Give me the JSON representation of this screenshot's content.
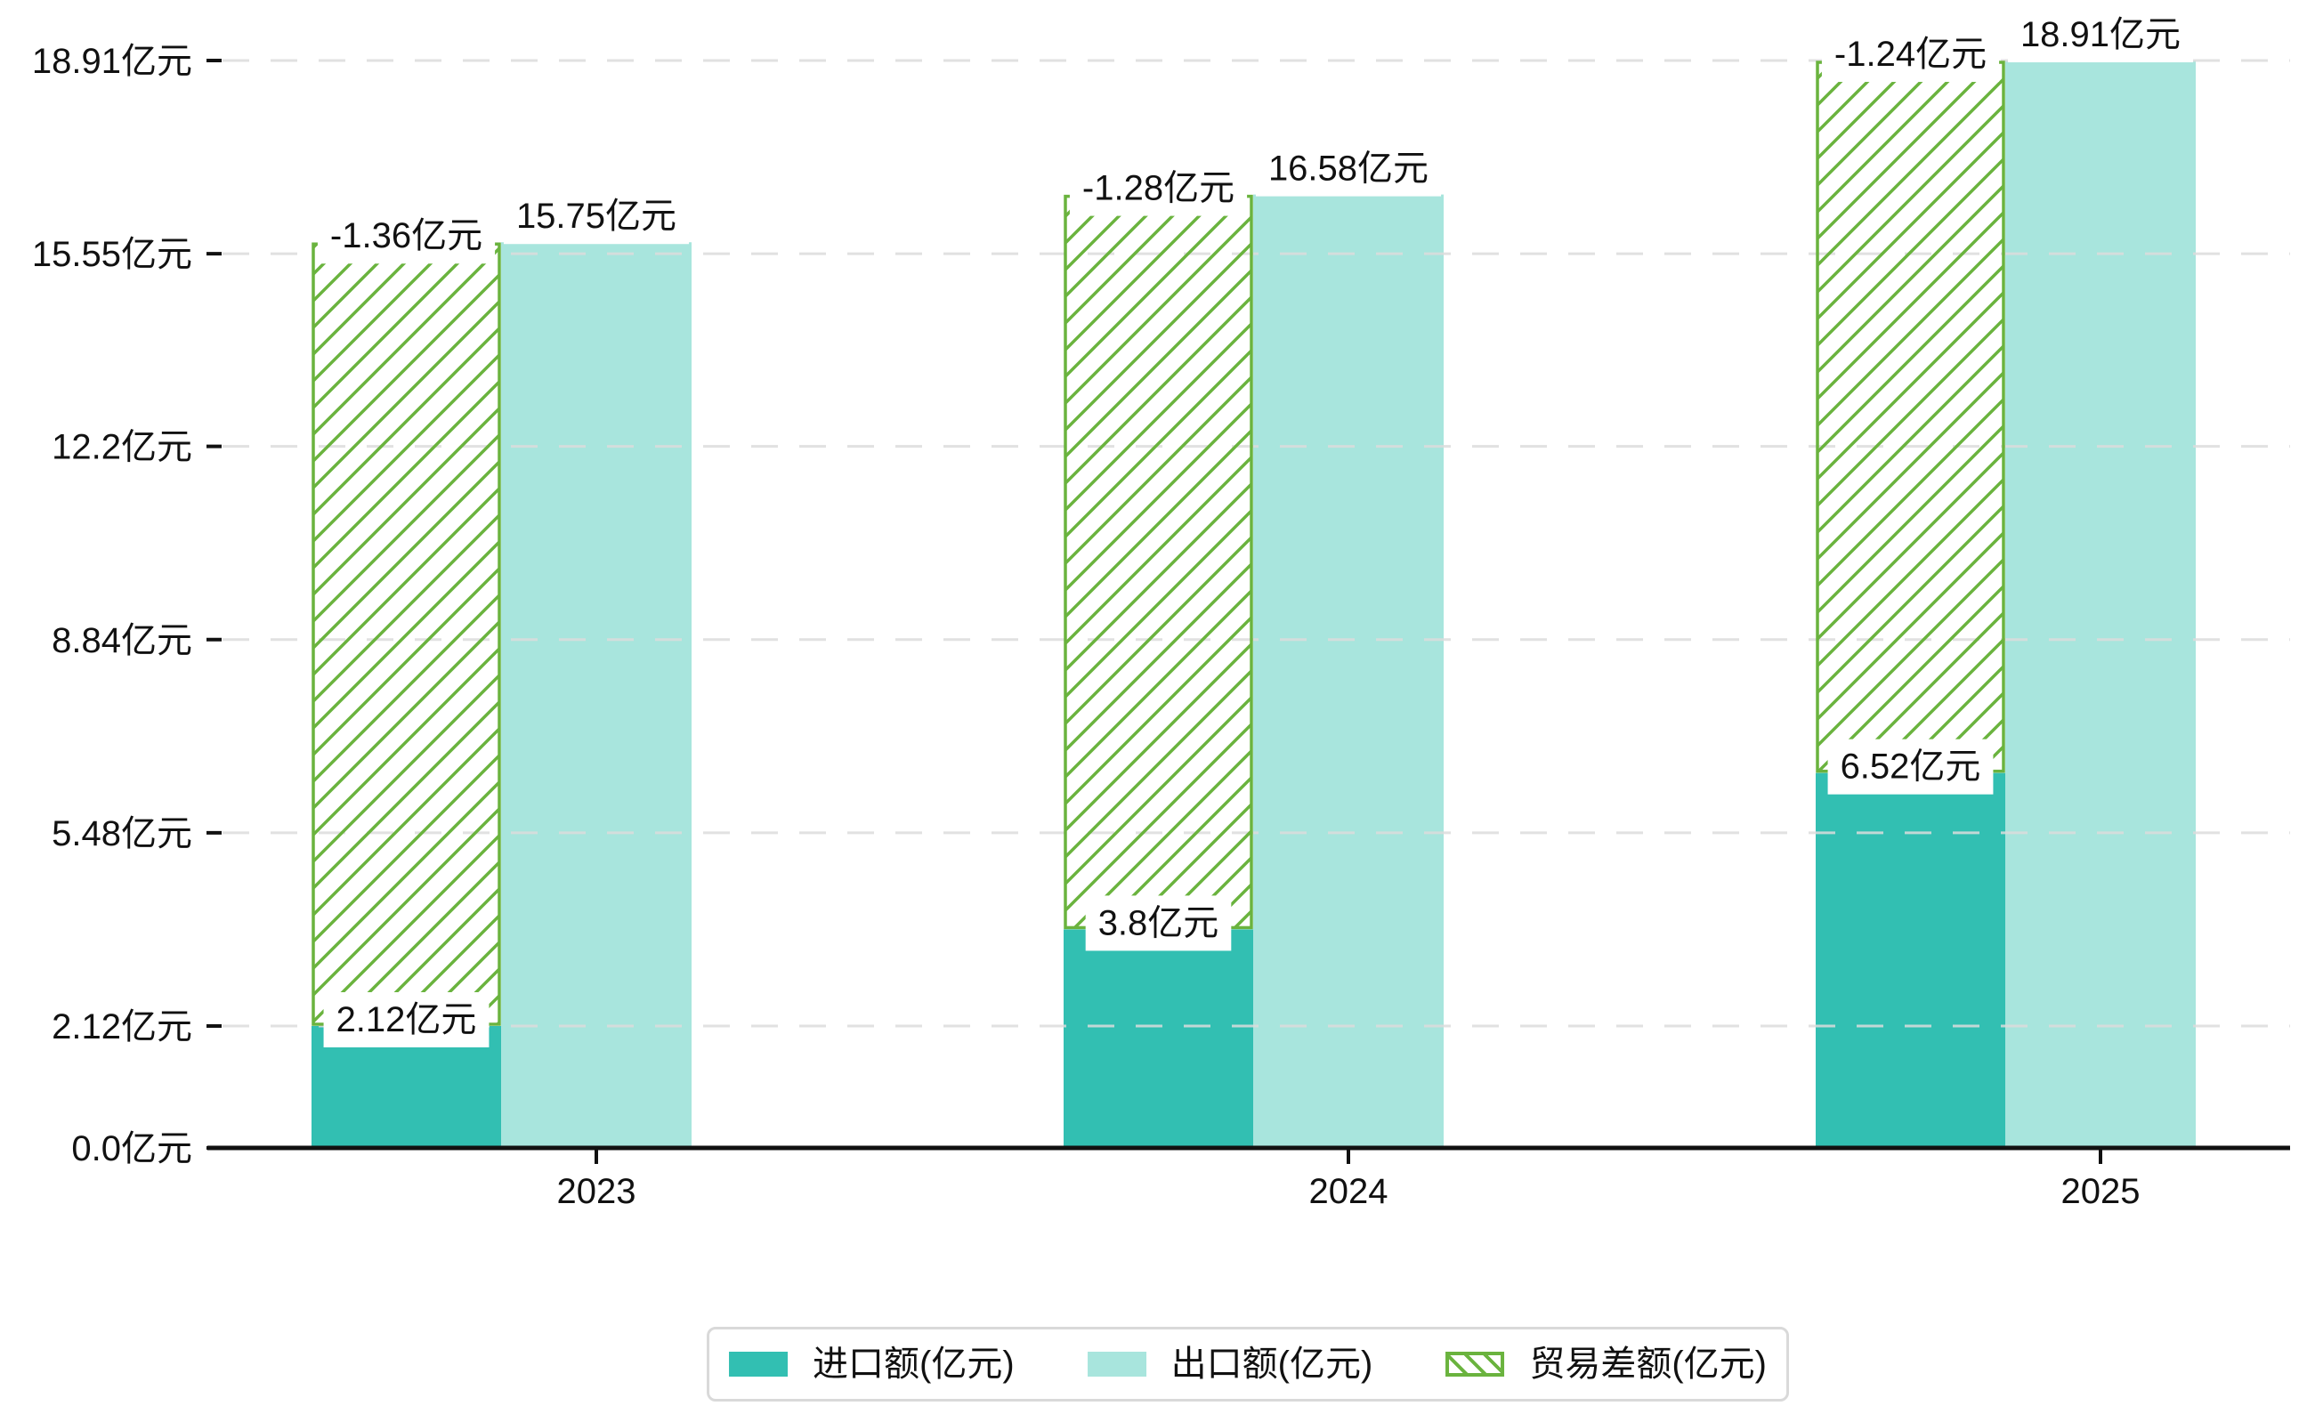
{
  "chart_data": {
    "type": "bar",
    "title": "",
    "categories": [
      "2023",
      "2024",
      "2025"
    ],
    "unit": "亿元",
    "series": [
      {
        "name": "进口额(亿元)",
        "role": "import",
        "style": "solid",
        "color": "#32bfb2",
        "values": [
          2.12,
          3.8,
          6.52
        ],
        "data_labels": [
          "2.12亿元",
          "3.8亿元",
          "6.52亿元"
        ]
      },
      {
        "name": "出口额(亿元)",
        "role": "export",
        "style": "solid",
        "color": "#a8e5dd",
        "values": [
          15.75,
          16.58,
          18.91
        ],
        "data_labels": [
          "15.75亿元",
          "16.58亿元",
          "18.91亿元"
        ]
      },
      {
        "name": "贸易差额(亿元)",
        "role": "trade-balance",
        "style": "hatched",
        "color": "#6ab33e",
        "values": [
          -1.36,
          -1.28,
          -1.24
        ],
        "data_labels": [
          "-1.36亿元",
          "-1.28亿元",
          "-1.24亿元"
        ]
      }
    ],
    "y_axis": {
      "ticks": [
        {
          "value": 0.0,
          "label": "0.0亿元"
        },
        {
          "value": 2.12,
          "label": "2.12亿元"
        },
        {
          "value": 5.48,
          "label": "5.48亿元"
        },
        {
          "value": 8.84,
          "label": "8.84亿元"
        },
        {
          "value": 12.2,
          "label": "12.2亿元"
        },
        {
          "value": 15.55,
          "label": "15.55亿元"
        },
        {
          "value": 18.91,
          "label": "18.91亿元"
        }
      ],
      "range": [
        0,
        19.7
      ]
    },
    "x_axis": {
      "labels": [
        "2023",
        "2024",
        "2025"
      ]
    },
    "grid": {
      "horizontal": true,
      "style": "dashed"
    },
    "legend": {
      "position": "bottom-center",
      "entries": [
        "进口额(亿元)",
        "出口额(亿元)",
        "贸易差额(亿元)"
      ]
    },
    "colors": {
      "import_bar": "#32bfb2",
      "export_bar": "#a8e5dd",
      "trade_balance_hatch": "#6ab33e",
      "gridline": "#dcdcdc",
      "axis": "#111111",
      "text": "#111111",
      "legend_border": "#d9d9d9"
    }
  }
}
